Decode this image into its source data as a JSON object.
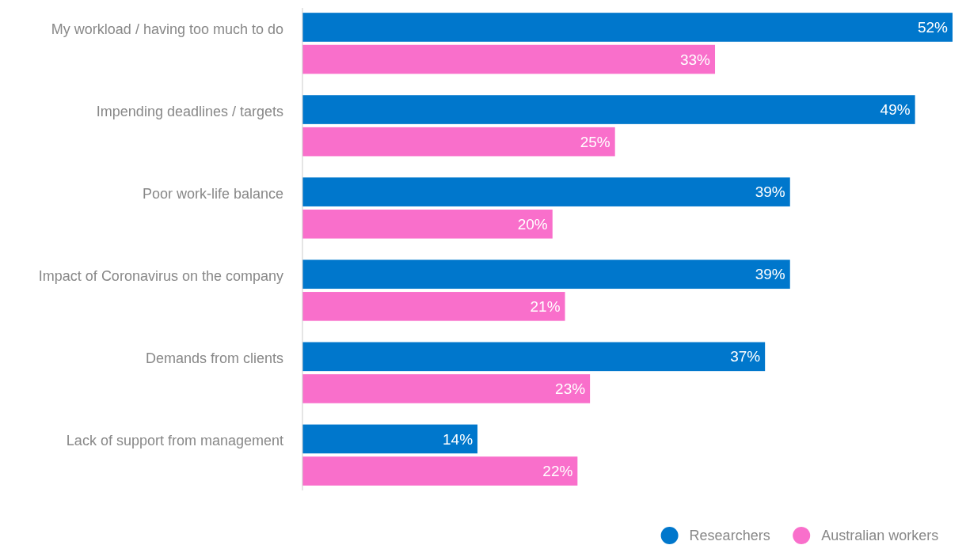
{
  "chart_data": {
    "type": "bar",
    "orientation": "horizontal",
    "categories": [
      "My workload / having too much to do",
      "Impending deadlines / targets",
      "Poor work-life balance",
      "Impact of Coronavirus on the company",
      "Demands from clients",
      "Lack of support from management"
    ],
    "series": [
      {
        "name": "Researchers",
        "color": "#0077cc",
        "values": [
          52,
          49,
          39,
          39,
          37,
          14
        ],
        "value_labels": [
          "52%",
          "49%",
          "39%",
          "39%",
          "37%",
          "14%"
        ]
      },
      {
        "name": "Australian workers",
        "color": "#f96fcb",
        "values": [
          33,
          25,
          20,
          21,
          23,
          22
        ],
        "value_labels": [
          "33%",
          "25%",
          "20%",
          "21%",
          "23%",
          "22%"
        ]
      }
    ],
    "legend": "bottom right"
  }
}
